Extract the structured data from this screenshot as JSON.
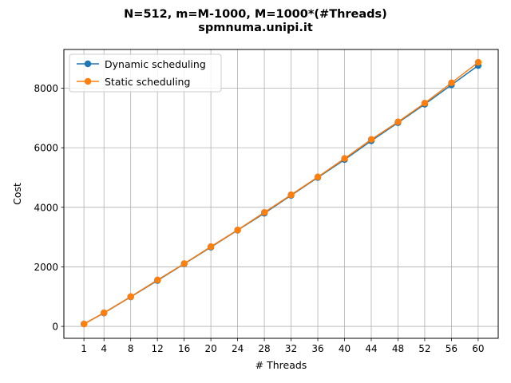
{
  "chart_data": {
    "type": "line",
    "title_line1": "N=512, m=M-1000, M=1000*(#Threads)",
    "title_line2": "spmnuma.unipi.it",
    "xlabel": "# Threads",
    "ylabel": "Cost",
    "xlim": [
      -2,
      63
    ],
    "ylim": [
      -400,
      9300
    ],
    "x": [
      1,
      4,
      8,
      12,
      16,
      20,
      24,
      28,
      32,
      36,
      40,
      44,
      48,
      52,
      56,
      60
    ],
    "x_ticks": [
      1,
      4,
      8,
      12,
      16,
      20,
      24,
      28,
      32,
      36,
      40,
      44,
      48,
      52,
      56,
      60
    ],
    "y_ticks": [
      0,
      2000,
      4000,
      6000,
      8000
    ],
    "grid": true,
    "legend_position": "upper-left",
    "series": [
      {
        "name": "Dynamic scheduling",
        "color": "#1f77b4",
        "values": [
          80,
          450,
          990,
          1540,
          2100,
          2660,
          3230,
          3800,
          4400,
          5000,
          5600,
          6230,
          6840,
          7460,
          8110,
          8760
        ]
      },
      {
        "name": "Static scheduling",
        "color": "#ff7f0e",
        "values": [
          80,
          460,
          1000,
          1560,
          2110,
          2680,
          3240,
          3830,
          4420,
          5020,
          5640,
          6280,
          6870,
          7500,
          8180,
          8870
        ]
      }
    ]
  }
}
